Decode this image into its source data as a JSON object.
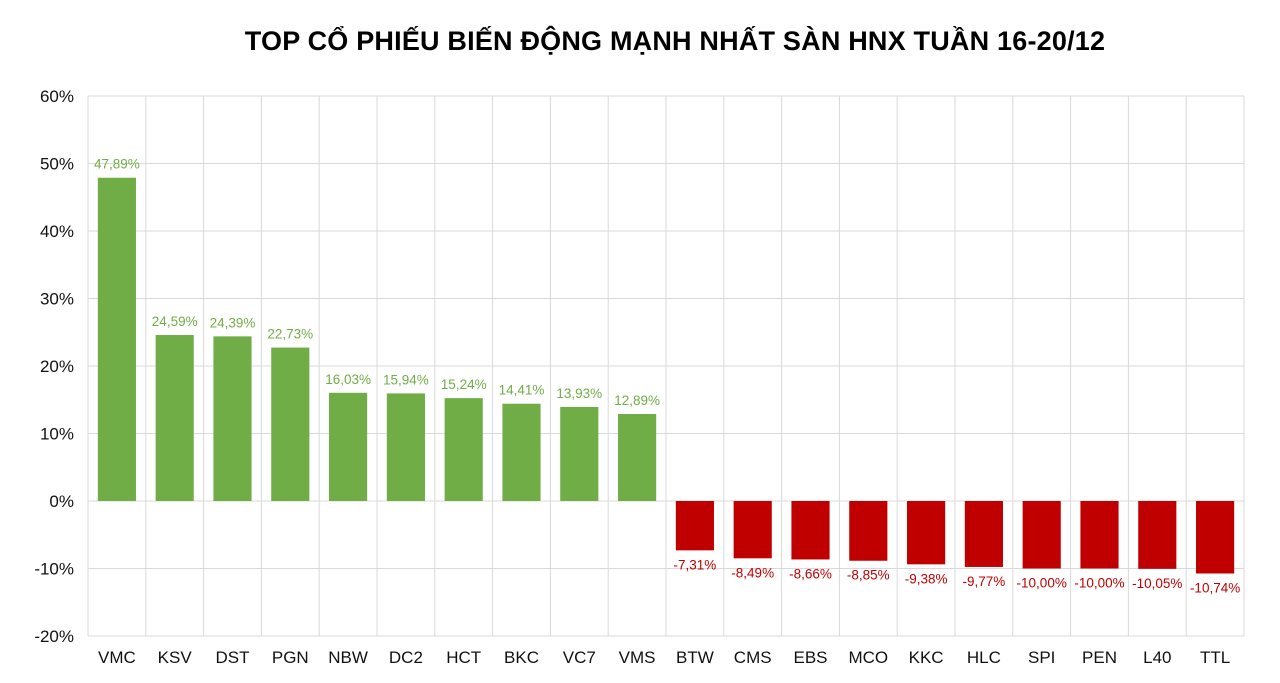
{
  "chart_data": {
    "type": "bar",
    "title": "TOP CỔ PHIẾU BIẾN ĐỘNG MẠNH NHẤT SÀN HNX TUẦN 16-20/12",
    "xlabel": "",
    "ylabel": "",
    "ylim": [
      -20,
      60
    ],
    "yticks": [
      "60%",
      "50%",
      "40%",
      "30%",
      "20%",
      "10%",
      "0%",
      "-10%",
      "-20%"
    ],
    "ytick_values": [
      60,
      50,
      40,
      30,
      20,
      10,
      0,
      -10,
      -20
    ],
    "grid": true,
    "legend": "none",
    "positive_color": "#70ad47",
    "negative_color": "#c00000",
    "categories": [
      "VMC",
      "KSV",
      "DST",
      "PGN",
      "NBW",
      "DC2",
      "HCT",
      "BKC",
      "VC7",
      "VMS",
      "BTW",
      "CMS",
      "EBS",
      "MCO",
      "KKC",
      "HLC",
      "SPI",
      "PEN",
      "L40",
      "TTL"
    ],
    "values": [
      47.89,
      24.59,
      24.39,
      22.73,
      16.03,
      15.94,
      15.24,
      14.41,
      13.93,
      12.89,
      -7.31,
      -8.49,
      -8.66,
      -8.85,
      -9.38,
      -9.77,
      -10.0,
      -10.0,
      -10.05,
      -10.74
    ],
    "data_labels": [
      "47,89%",
      "24,59%",
      "24,39%",
      "22,73%",
      "16,03%",
      "15,94%",
      "15,24%",
      "14,41%",
      "13,93%",
      "12,89%",
      "-7,31%",
      "-8,49%",
      "-8,66%",
      "-8,85%",
      "-9,38%",
      "-9,77%",
      "-10,00%",
      "-10,00%",
      "-10,05%",
      "-10,74%"
    ]
  }
}
